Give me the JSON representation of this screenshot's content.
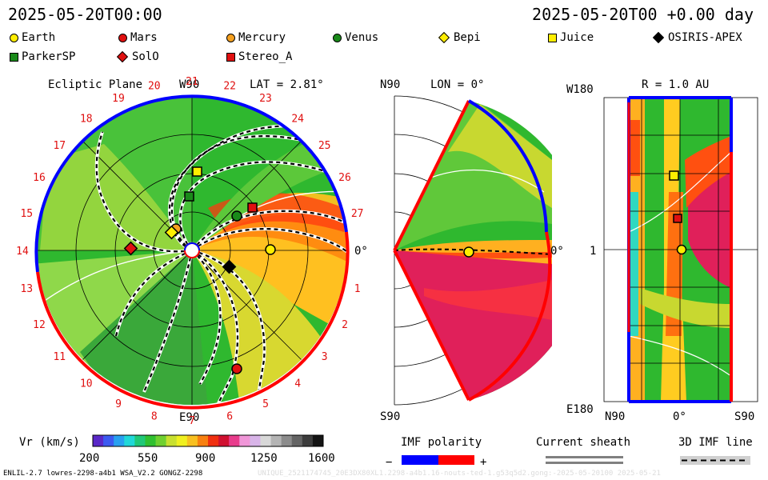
{
  "header": {
    "left": "2025-05-20T00:00",
    "right": "2025-05-20T00 +0.00 day"
  },
  "legend": [
    {
      "label": "Earth",
      "color": "#ffee00",
      "shape": "circle"
    },
    {
      "label": "Mars",
      "color": "#e01010",
      "shape": "circle"
    },
    {
      "label": "Mercury",
      "color": "#f5a020",
      "shape": "circle"
    },
    {
      "label": "Venus",
      "color": "#1a8a1a",
      "shape": "circle"
    },
    {
      "label": "Bepi",
      "color": "#ffee00",
      "shape": "diamond"
    },
    {
      "label": "Juice",
      "color": "#ffee00",
      "shape": "square"
    },
    {
      "label": "OSIRIS-APEX",
      "color": "#000000",
      "shape": "diamond"
    },
    {
      "label": "ParkerSP",
      "color": "#1a8a1a",
      "shape": "square"
    },
    {
      "label": "SolO",
      "color": "#e01010",
      "shape": "diamond"
    },
    {
      "label": "Stereo_A",
      "color": "#e01010",
      "shape": "square"
    }
  ],
  "panels": {
    "ecliptic": {
      "title": "Ecliptic Plane",
      "top_label": "W90",
      "bottom_label": "E90",
      "right_label": "0°",
      "lat": "LAT = 2.81°",
      "carrington": [
        "1",
        "2",
        "3",
        "4",
        "5",
        "6",
        "7",
        "8",
        "9",
        "10",
        "11",
        "12",
        "13",
        "14",
        "15",
        "16",
        "17",
        "18",
        "19",
        "20",
        "21",
        "22",
        "23",
        "24",
        "25",
        "26",
        "27"
      ]
    },
    "meridional": {
      "title": "LON = 0°",
      "top": "N90",
      "bottom": "S90",
      "right": "0°"
    },
    "rect": {
      "title": "R = 1.0 AU",
      "top_left": "W180",
      "mid_left": "1",
      "bottom_left": "E180",
      "x_left": "N90",
      "x_mid": "0°",
      "x_right": "S90"
    }
  },
  "colorbar": {
    "label": "Vr (km/s)",
    "ticks": [
      "200",
      "550",
      "900",
      "1250",
      "1600"
    ]
  },
  "imf": {
    "label": "IMF polarity",
    "minus": "−",
    "plus": "+"
  },
  "sheath": {
    "label": "Current sheath"
  },
  "imf3d": {
    "label": "3D IMF line"
  },
  "footer": {
    "left": "ENLIL-2.7 lowres-2298-a4b1 WSA_V2.2 GONGZ-2298",
    "right": "UNIQUE_2521174745_20E3DX80XL1.2298-a4b1.16-nouts-ted-1.g53q5d2.gong:-2025-05-20100  2025-05-21"
  },
  "colors": {
    "positive": "#ff0000",
    "negative": "#0000ff"
  }
}
